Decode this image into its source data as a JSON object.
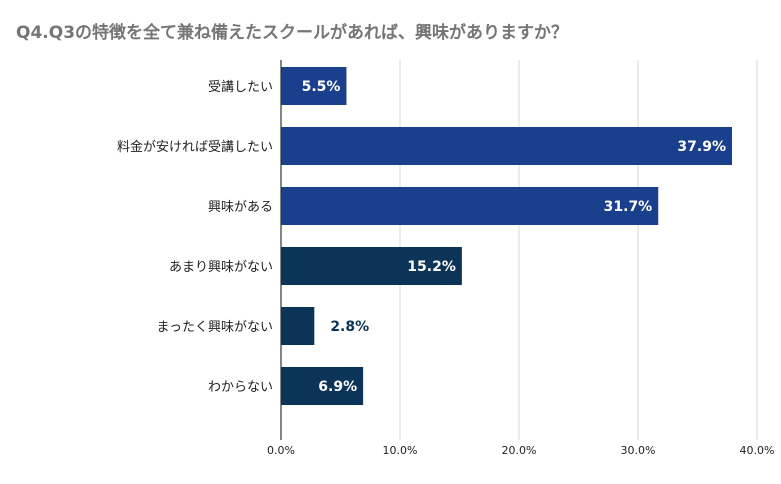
{
  "chart_data": {
    "type": "bar",
    "orientation": "horizontal",
    "title": "Q4.Q3の特徴を全て兼ね備えたスクールがあれば、興味がありますか？",
    "categories": [
      "受講したい",
      "料金が安ければ受講したい",
      "興味がある",
      "あまり興味がない",
      "まったく興味がない",
      "わからない"
    ],
    "values": [
      5.5,
      37.9,
      31.7,
      15.2,
      2.8,
      6.9
    ],
    "value_labels": [
      "5.5%",
      "37.9%",
      "31.7%",
      "15.2%",
      "2.8%",
      "6.9%"
    ],
    "xlim": [
      0,
      40
    ],
    "x_ticks": [
      "0.0%",
      "10.0%",
      "20.0%",
      "30.0%",
      "40.0%"
    ],
    "x_tick_values": [
      0,
      10,
      20,
      30,
      40
    ],
    "grid": true,
    "legend": "none",
    "colors": {
      "positive": "#1a3f8c",
      "negative": "#0c3458",
      "grid": "#d9d9d9",
      "axis": "#333333",
      "label_inside": "#ffffff",
      "label_outside": "#0c3458"
    }
  }
}
